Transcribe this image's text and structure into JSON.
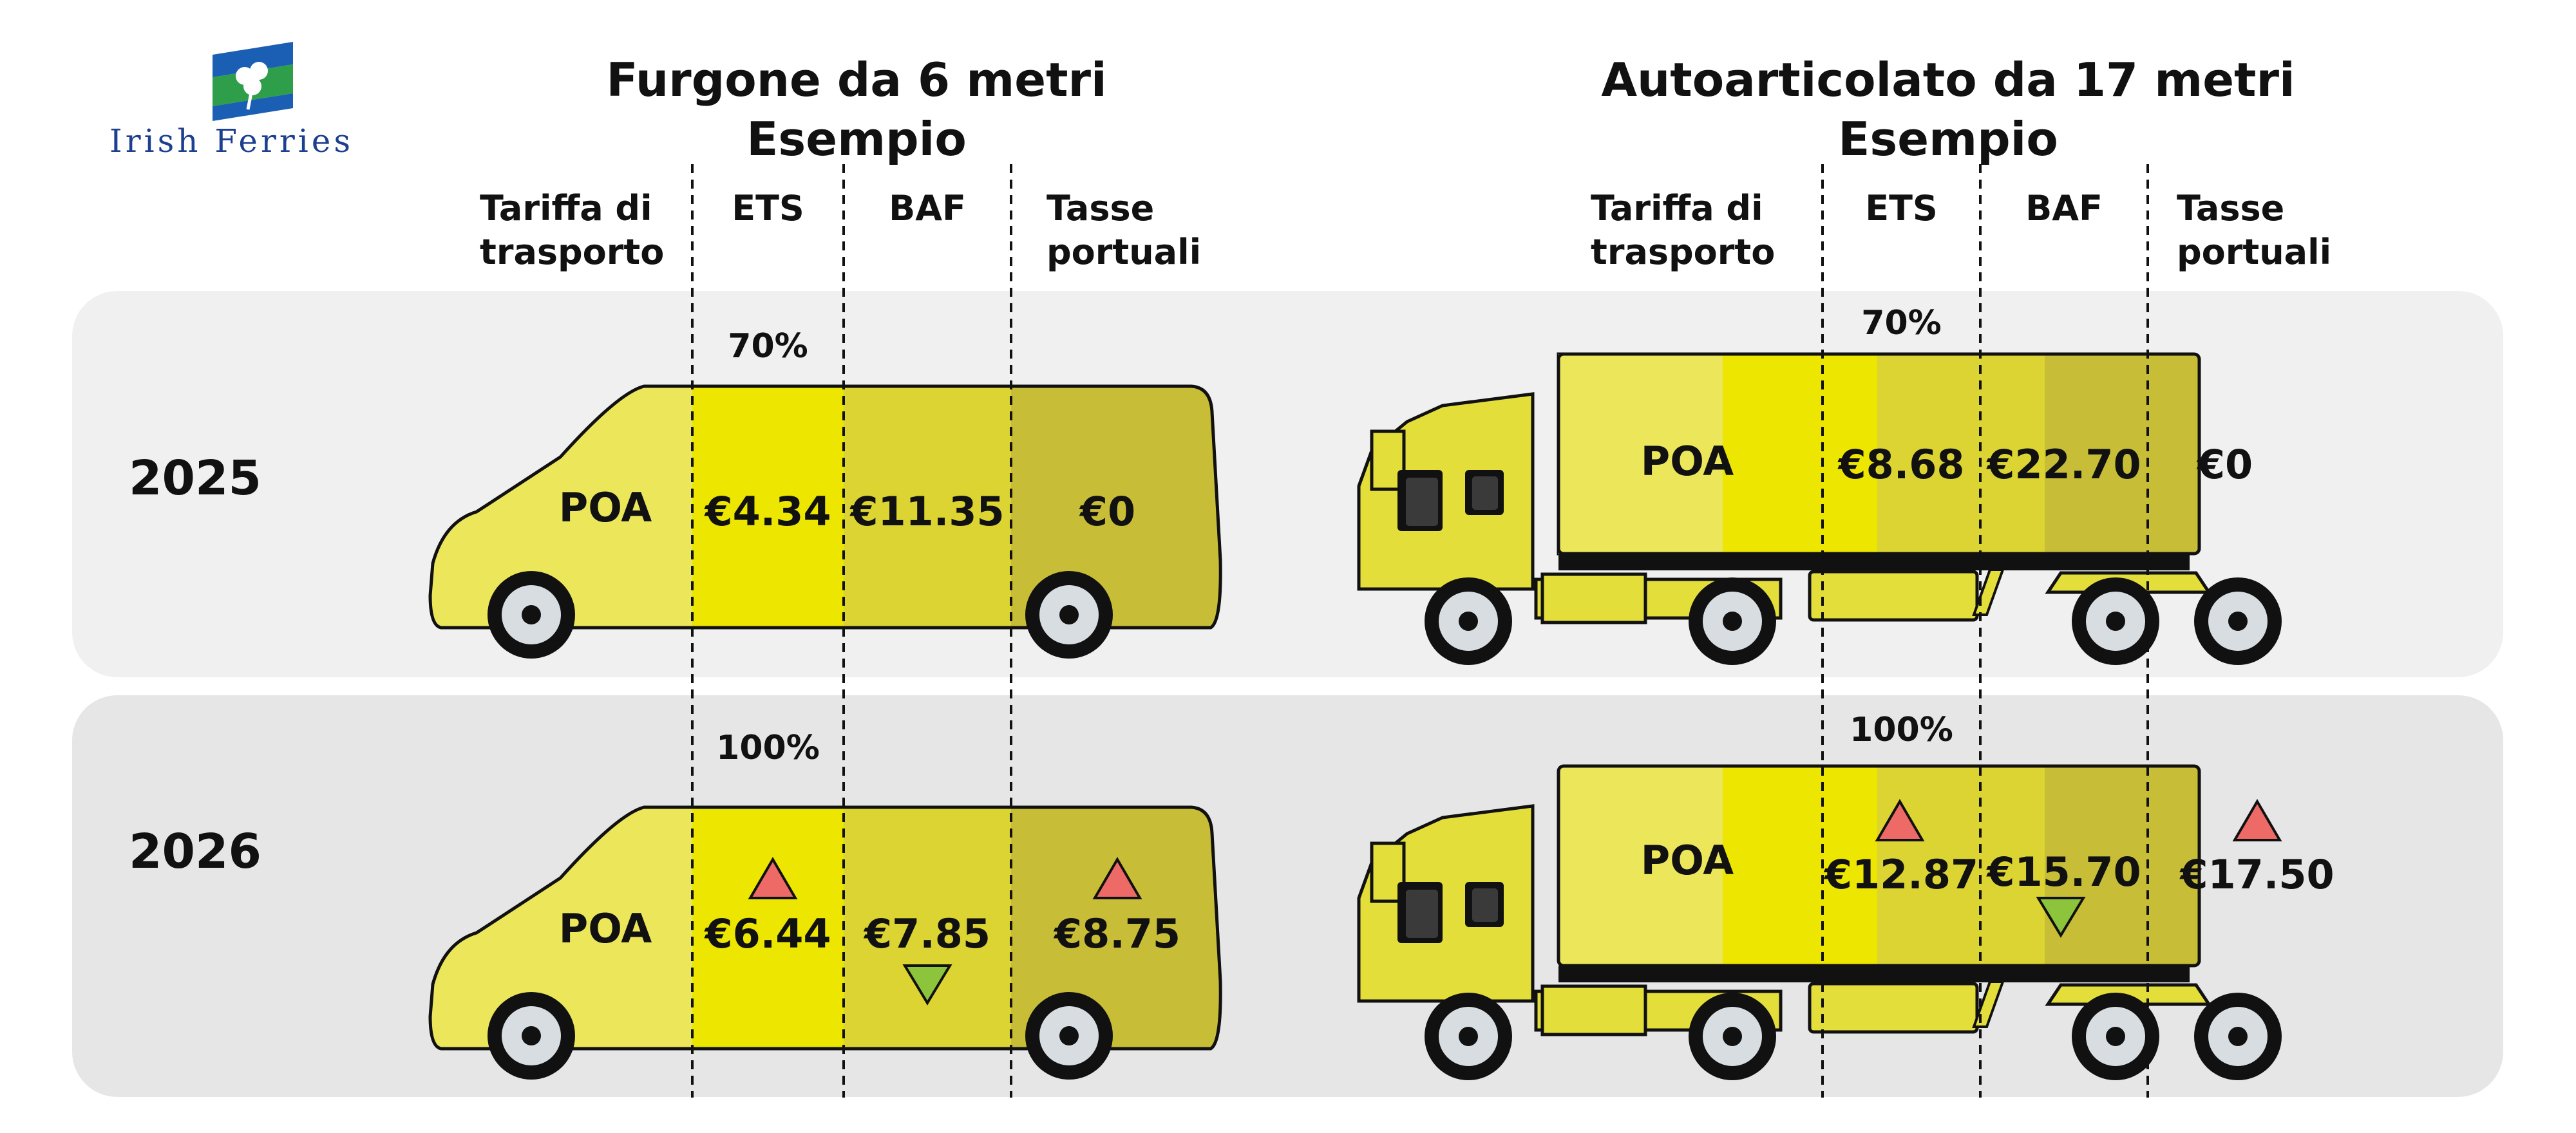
{
  "logo": {
    "brand": "Irish Ferries",
    "flag_colors": [
      "#1a5fb4",
      "#2e9e4a",
      "#ffffff"
    ]
  },
  "sections": [
    {
      "title_line1": "Furgone da 6 metri",
      "title_line2": "Esempio",
      "columns": [
        "Tariffa di trasporto",
        "ETS",
        "BAF",
        "Tasse portuali"
      ]
    },
    {
      "title_line1": "Autoarticolato da 17 metri",
      "title_line2": "Esempio",
      "columns": [
        "Tariffa di trasporto",
        "ETS",
        "BAF",
        "Tasse portuali"
      ]
    }
  ],
  "header_labels": {
    "tariffa_line1": "Tariffa di",
    "tariffa_line2": "trasporto",
    "ets": "ETS",
    "baf": "BAF",
    "tasse_line1": "Tasse",
    "tasse_line2": "portuali"
  },
  "rows": [
    {
      "year": "2025",
      "ets_share": "70%",
      "van": {
        "tariffa": "POA",
        "ets": "€4.34",
        "baf": "€11.35",
        "tasse": "€0"
      },
      "truck": {
        "tariffa": "POA",
        "ets": "€8.68",
        "baf": "€22.70",
        "tasse": "€0"
      },
      "changes": {
        "ets": "none",
        "baf": "none",
        "tasse": "none"
      }
    },
    {
      "year": "2026",
      "ets_share": "100%",
      "van": {
        "tariffa": "POA",
        "ets": "€6.44",
        "baf": "€7.85",
        "tasse": "€8.75"
      },
      "truck": {
        "tariffa": "POA",
        "ets": "€12.87",
        "baf": "€15.70",
        "tasse": "€17.50"
      },
      "changes": {
        "ets": "up",
        "baf": "down",
        "tasse": "up"
      }
    }
  ],
  "colors": {
    "panel_2025": "#f0f0f0",
    "panel_2026": "#e6e6e6",
    "tariffa": "#ebe65a",
    "ets": "#ece600",
    "baf": "#dcd432",
    "tasse": "#c8bd36",
    "cab": "#e4de3a",
    "up_arrow": "#ee6a66",
    "down_arrow": "#8cc43c"
  }
}
